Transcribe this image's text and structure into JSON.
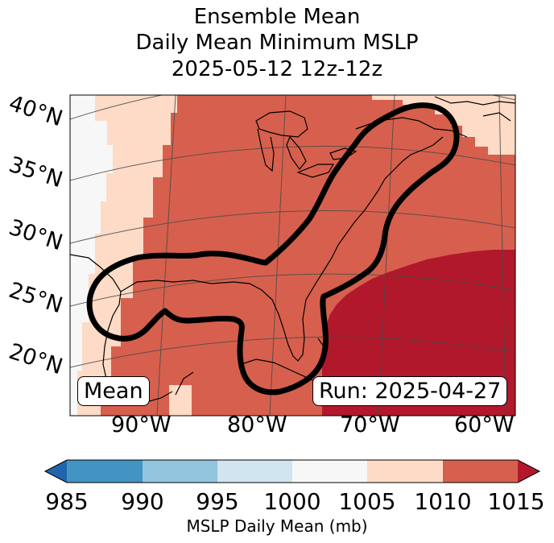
{
  "title": {
    "line1": "Ensemble Mean",
    "line2": "Daily Mean Minimum MSLP",
    "line3": "2025-05-12 12z-12z"
  },
  "map": {
    "lat_labels": [
      "40°N",
      "35°N",
      "30°N",
      "25°N",
      "20°N"
    ],
    "lon_labels": [
      "90°W",
      "80°W",
      "70°W",
      "60°W"
    ],
    "mean_label": "Mean",
    "run_label": "Run: 2025-04-27"
  },
  "colorbar": {
    "ticks": [
      "985",
      "990",
      "995",
      "1000",
      "1005",
      "1010",
      "1015"
    ],
    "colors": [
      "#2166ac",
      "#4393c3",
      "#92c5de",
      "#d1e5f0",
      "#f7f7f7",
      "#fddbc7",
      "#d6604d",
      "#b2182b"
    ],
    "label": "MSLP Daily Mean (mb)"
  },
  "field_colors": {
    "c1000_1005": "#f7f7f7",
    "c1005_1010": "#fddbc7",
    "c1010_1015": "#d6604d",
    "c1015_plus": "#b2182b"
  }
}
